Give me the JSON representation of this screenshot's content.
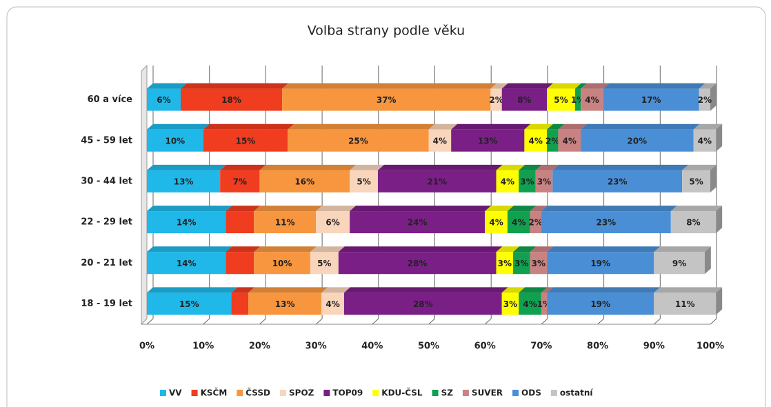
{
  "chart_data": {
    "type": "stacked-bar-horizontal",
    "title": "Volba strany podle věku",
    "categories": [
      "60 a více",
      "45 - 59 let",
      "30 -  44 let",
      "22 - 29 let",
      "20 - 21 let",
      "18 - 19 let"
    ],
    "xlim": [
      0,
      100
    ],
    "xticks": [
      {
        "value": 0,
        "label": "0%"
      },
      {
        "value": 10,
        "label": "10%"
      },
      {
        "value": 20,
        "label": "20%"
      },
      {
        "value": 30,
        "label": "30%"
      },
      {
        "value": 40,
        "label": "40%"
      },
      {
        "value": 50,
        "label": "50%"
      },
      {
        "value": 60,
        "label": "60%"
      },
      {
        "value": 70,
        "label": "70%"
      },
      {
        "value": 80,
        "label": "80%"
      },
      {
        "value": 90,
        "label": "90%"
      },
      {
        "value": 100,
        "label": "100%"
      }
    ],
    "grid": true,
    "legend": "bottom",
    "series": [
      {
        "name": "VV",
        "color": "#1fb8e8",
        "values": [
          6,
          10,
          13,
          14,
          14,
          15
        ],
        "value_labels": [
          "6%",
          "10%",
          "13%",
          "14%",
          "14%",
          "15%"
        ]
      },
      {
        "name": "KSČM",
        "color": "#f03c1f",
        "values": [
          18,
          15,
          7,
          5,
          5,
          3
        ],
        "value_labels": [
          "18%",
          "15%",
          "7%",
          null,
          null,
          null
        ]
      },
      {
        "name": "ČSSD",
        "color": "#f7963f",
        "values": [
          37,
          25,
          16,
          11,
          10,
          13
        ],
        "value_labels": [
          "37%",
          "25%",
          "16%",
          "11%",
          "10%",
          "13%"
        ]
      },
      {
        "name": "SPOZ",
        "color": "#f8d5bb",
        "values": [
          2,
          4,
          5,
          6,
          5,
          4
        ],
        "value_labels": [
          "2%",
          "4%",
          "5%",
          "6%",
          "5%",
          "4%"
        ]
      },
      {
        "name": "TOP09",
        "color": "#7a1f86",
        "values": [
          8,
          13,
          21,
          24,
          28,
          28
        ],
        "value_labels": [
          "8%",
          "13%",
          "21%",
          "24%",
          "28%",
          "28%"
        ]
      },
      {
        "name": "KDU-ČSL",
        "color": "#ffff00",
        "values": [
          5,
          4,
          4,
          4,
          3,
          3
        ],
        "value_labels": [
          "5%",
          "4%",
          "4%",
          "4%",
          "3%",
          "3%"
        ]
      },
      {
        "name": "SZ",
        "color": "#10a050",
        "values": [
          1,
          2,
          3,
          4,
          3,
          4
        ],
        "value_labels": [
          "1%",
          "2%",
          "3%",
          "4%",
          "3%",
          "4%"
        ]
      },
      {
        "name": "SUVER",
        "color": "#c98282",
        "values": [
          4,
          4,
          3,
          2,
          3,
          1
        ],
        "value_labels": [
          "4%",
          "4%",
          "3%",
          "2%",
          "3%",
          "1%"
        ]
      },
      {
        "name": "ODS",
        "color": "#4a8fd6",
        "values": [
          17,
          20,
          23,
          23,
          19,
          19
        ],
        "value_labels": [
          "17%",
          "20%",
          "23%",
          "23%",
          "19%",
          "19%"
        ]
      },
      {
        "name": "ostatní",
        "color": "#c4c4c4",
        "values": [
          2,
          4,
          5,
          8,
          9,
          11
        ],
        "value_labels": [
          "2%",
          "4%",
          "5%",
          "8%",
          "9%",
          "11%"
        ]
      }
    ]
  }
}
